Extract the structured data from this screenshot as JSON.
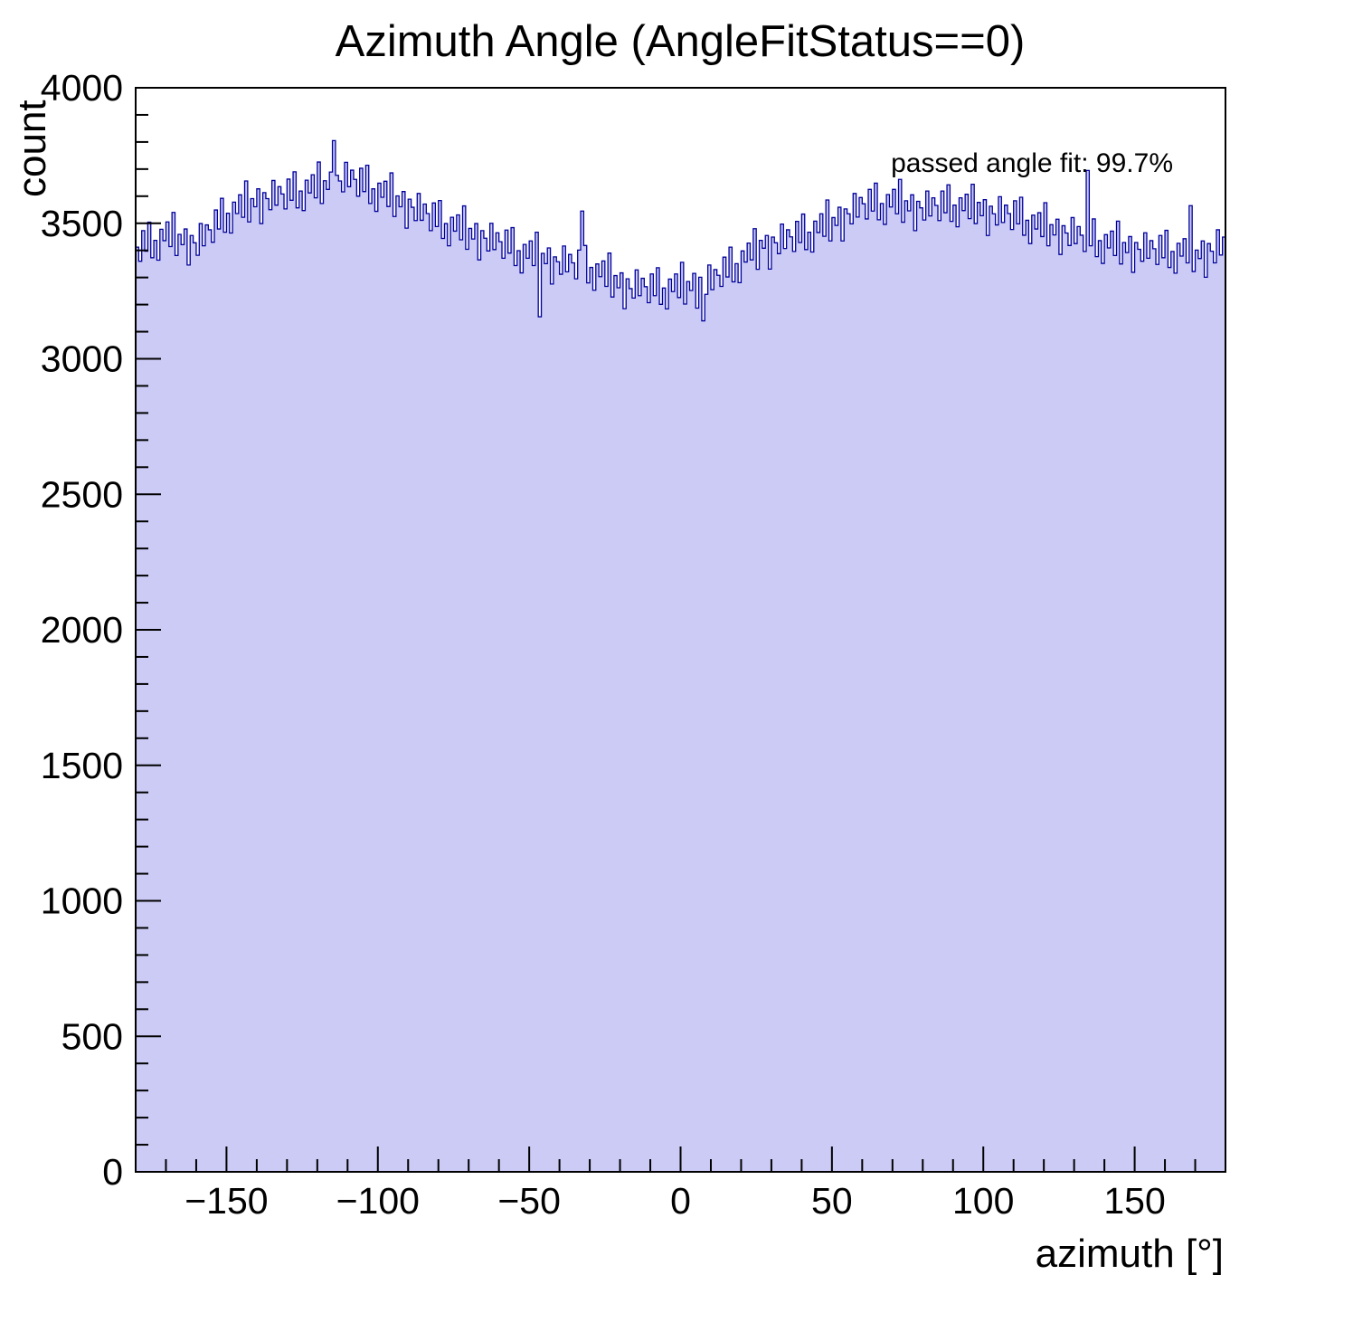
{
  "chart_data": {
    "type": "bar",
    "subtype": "histogram-step-filled",
    "title": "Azimuth Angle (AngleFitStatus==0)",
    "xlabel": "azimuth [°]",
    "ylabel": "count",
    "annotation": "passed angle fit: 99.7%",
    "xlim": [
      -180,
      180
    ],
    "ylim": [
      0,
      4000
    ],
    "bin_start": -180,
    "bin_width": 1,
    "x_tick_values": [
      -150,
      -100,
      -50,
      0,
      50,
      100,
      150
    ],
    "x_tick_labels": [
      "−150",
      "−100",
      "−50",
      "0",
      "50",
      "100",
      "150"
    ],
    "y_tick_values": [
      0,
      500,
      1000,
      1500,
      2000,
      2500,
      3000,
      3500,
      4000
    ],
    "y_tick_labels": [
      "0",
      "500",
      "1000",
      "1500",
      "2000",
      "2500",
      "3000",
      "3500",
      "4000"
    ],
    "x_minor_step": 10,
    "y_minor_step": 100,
    "grid": false,
    "legend": "none",
    "fill_color": "#cbcbf6",
    "line_color": "#00009a",
    "frame_color": "#000000",
    "values": [
      3412,
      3360,
      3473,
      3397,
      3504,
      3373,
      3437,
      3364,
      3478,
      3436,
      3505,
      3414,
      3540,
      3381,
      3459,
      3421,
      3479,
      3346,
      3455,
      3428,
      3382,
      3499,
      3417,
      3494,
      3476,
      3430,
      3549,
      3479,
      3592,
      3467,
      3537,
      3464,
      3578,
      3536,
      3605,
      3522,
      3656,
      3505,
      3591,
      3561,
      3627,
      3499,
      3613,
      3591,
      3550,
      3658,
      3567,
      3635,
      3608,
      3553,
      3663,
      3585,
      3690,
      3557,
      3619,
      3547,
      3659,
      3612,
      3679,
      3594,
      3726,
      3573,
      3657,
      3625,
      3689,
      3805,
      3677,
      3656,
      3616,
      3725,
      3635,
      3696,
      3662,
      3600,
      3703,
      3617,
      3714,
      3573,
      3627,
      3544,
      3648,
      3596,
      3655,
      3562,
      3686,
      3525,
      3601,
      3561,
      3617,
      3482,
      3589,
      3559,
      3510,
      3610,
      3511,
      3571,
      3536,
      3473,
      3575,
      3488,
      3584,
      3444,
      3499,
      3417,
      3522,
      3471,
      3531,
      3439,
      3564,
      3404,
      3481,
      3442,
      3499,
      3365,
      3473,
      3445,
      3398,
      3500,
      3403,
      3465,
      3432,
      3371,
      3475,
      3390,
      3484,
      3344,
      3399,
      3317,
      3422,
      3371,
      3435,
      3344,
      3467,
      3155,
      3389,
      3351,
      3409,
      3276,
      3376,
      3358,
      3312,
      3416,
      3321,
      3385,
      3354,
      3295,
      3401,
      3545,
      3418,
      3280,
      3337,
      3253,
      3350,
      3303,
      3361,
      3267,
      3390,
      3228,
      3307,
      3262,
      3317,
      3185,
      3295,
      3259,
      3224,
      3328,
      3233,
      3297,
      3266,
      3207,
      3313,
      3233,
      3336,
      3201,
      3261,
      3184,
      3294,
      3248,
      3313,
      3226,
      3356,
      3202,
      3285,
      3252,
      3315,
      3187,
      3301,
      3140,
      3238,
      3346,
      3255,
      3329,
      3308,
      3267,
      3375,
      3302,
      3412,
      3284,
      3351,
      3281,
      3398,
      3357,
      3427,
      3365,
      3480,
      3330,
      3437,
      3408,
      3455,
      3331,
      3449,
      3428,
      3388,
      3497,
      3407,
      3476,
      3450,
      3396,
      3507,
      3429,
      3534,
      3403,
      3467,
      3394,
      3508,
      3466,
      3535,
      3452,
      3586,
      3435,
      3521,
      3492,
      3559,
      3435,
      3553,
      3535,
      3498,
      3610,
      3523,
      3595,
      3572,
      3516,
      3625,
      3545,
      3648,
      3513,
      3573,
      3496,
      3606,
      3560,
      3625,
      3535,
      3662,
      3504,
      3583,
      3546,
      3605,
      3473,
      3581,
      3557,
      3512,
      3619,
      3527,
      3594,
      3566,
      3510,
      3619,
      3539,
      3642,
      3507,
      3567,
      3487,
      3594,
      3547,
      3607,
      3517,
      3644,
      3499,
      3577,
      3528,
      3587,
      3455,
      3563,
      3535,
      3494,
      3598,
      3503,
      3567,
      3536,
      3477,
      3583,
      3498,
      3596,
      3456,
      3511,
      3425,
      3530,
      3479,
      3539,
      3451,
      3576,
      3417,
      3495,
      3457,
      3515,
      3385,
      3491,
      3464,
      3418,
      3521,
      3425,
      3488,
      3456,
      3396,
      3695,
      3417,
      3516,
      3377,
      3436,
      3352,
      3458,
      3409,
      3471,
      3381,
      3508,
      3350,
      3429,
      3392,
      3451,
      3319,
      3429,
      3404,
      3360,
      3465,
      3371,
      3436,
      3406,
      3348,
      3455,
      3373,
      3474,
      3337,
      3396,
      3316,
      3426,
      3379,
      3443,
      3354,
      3565,
      3322,
      3401,
      3370,
      3435,
      3301,
      3425,
      3397,
      3354,
      3476,
      3383,
      3449
    ]
  }
}
